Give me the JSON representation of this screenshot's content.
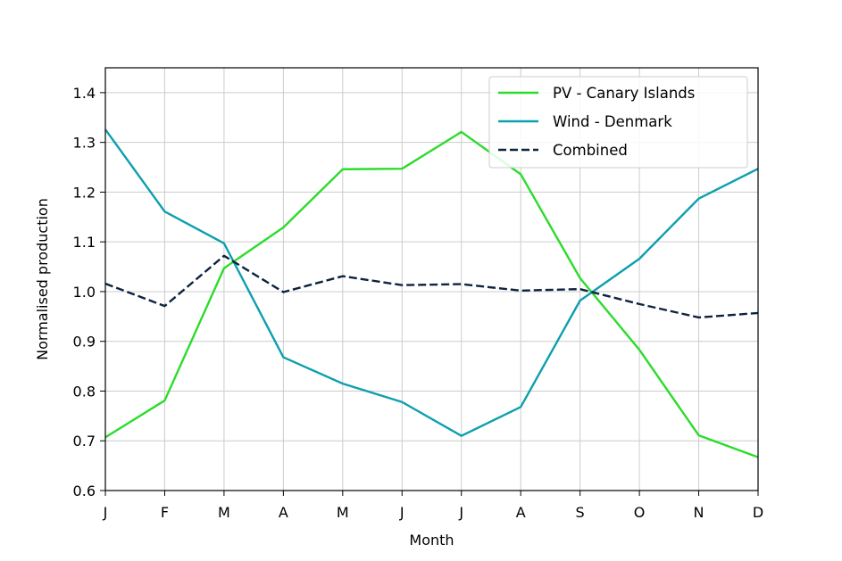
{
  "chart_data": {
    "type": "line",
    "title": "",
    "xlabel": "Month",
    "ylabel": "Normalised production",
    "categories": [
      "J",
      "F",
      "M",
      "A",
      "M",
      "J",
      "J",
      "A",
      "S",
      "O",
      "N",
      "D"
    ],
    "ylim": [
      0.6,
      1.45
    ],
    "yticks": [
      0.6,
      0.7,
      0.8,
      0.9,
      1.0,
      1.1,
      1.2,
      1.3,
      1.4
    ],
    "ytick_labels": [
      "0.6",
      "0.7",
      "0.8",
      "0.9",
      "1.0",
      "1.1",
      "1.2",
      "1.3",
      "1.4"
    ],
    "grid": true,
    "legend_position": "top-right",
    "series": [
      {
        "name": "PV - Canary Islands",
        "color": "#2bdc2b",
        "dash": "solid",
        "values": [
          0.707,
          0.781,
          1.047,
          1.129,
          1.246,
          1.247,
          1.321,
          1.236,
          1.027,
          0.883,
          0.711,
          0.667
        ]
      },
      {
        "name": "Wind - Denmark",
        "color": "#0c9faf",
        "dash": "solid",
        "values": [
          1.326,
          1.161,
          1.097,
          0.868,
          0.815,
          0.778,
          0.71,
          0.768,
          0.982,
          1.066,
          1.187,
          1.247
        ]
      },
      {
        "name": "Combined",
        "color": "#0d2340",
        "dash": "dashed",
        "values": [
          1.016,
          0.971,
          1.072,
          0.999,
          1.031,
          1.013,
          1.015,
          1.002,
          1.005,
          0.975,
          0.948,
          0.957
        ]
      }
    ]
  }
}
